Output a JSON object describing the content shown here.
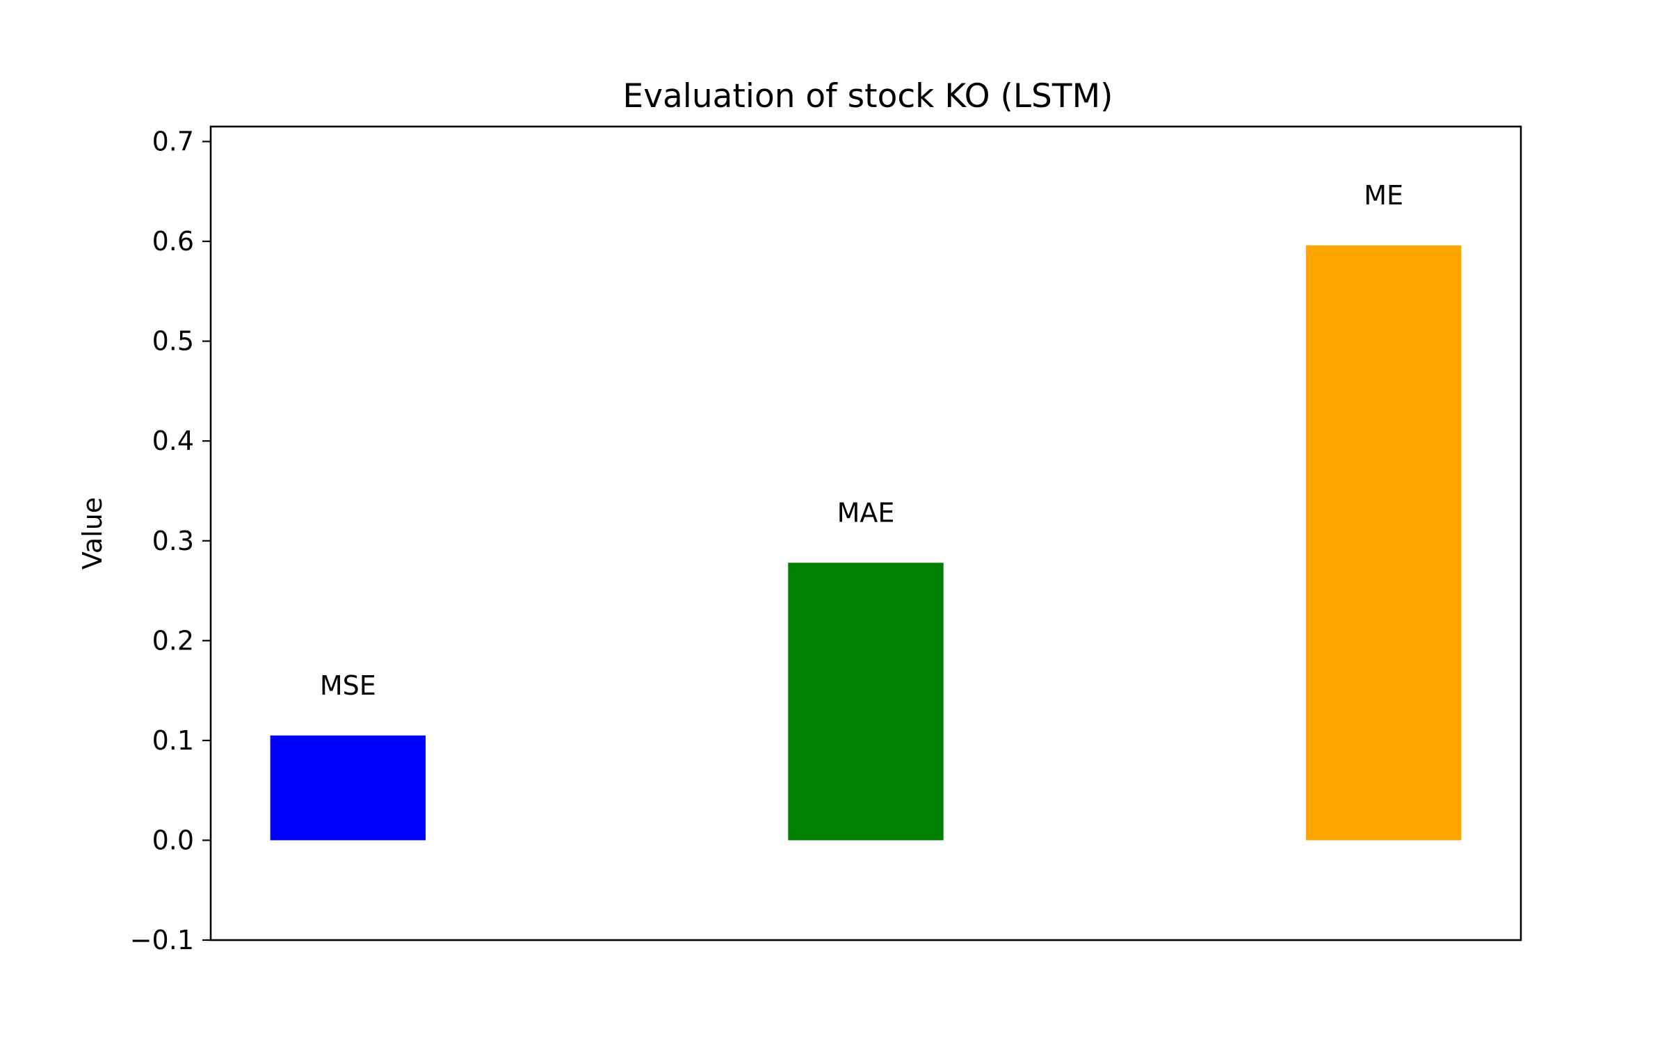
{
  "chart_data": {
    "type": "bar",
    "title": "Evaluation of stock KO (LSTM)",
    "xlabel": "",
    "ylabel": "Value",
    "categories": [
      "MSE",
      "MAE",
      "ME"
    ],
    "values": [
      0.105,
      0.278,
      0.596
    ],
    "colors": [
      "#0000ff",
      "#008000",
      "#ffa500"
    ],
    "bar_labels": [
      "MSE",
      "MAE",
      "ME"
    ],
    "ylim": [
      -0.1,
      0.715
    ],
    "yticks": [
      -0.1,
      0.0,
      0.1,
      0.2,
      0.3,
      0.4,
      0.5,
      0.6,
      0.7
    ],
    "ytick_labels": [
      "−0.1",
      "0.0",
      "0.1",
      "0.2",
      "0.3",
      "0.4",
      "0.5",
      "0.6",
      "0.7"
    ],
    "grid": false,
    "legend": "none"
  }
}
